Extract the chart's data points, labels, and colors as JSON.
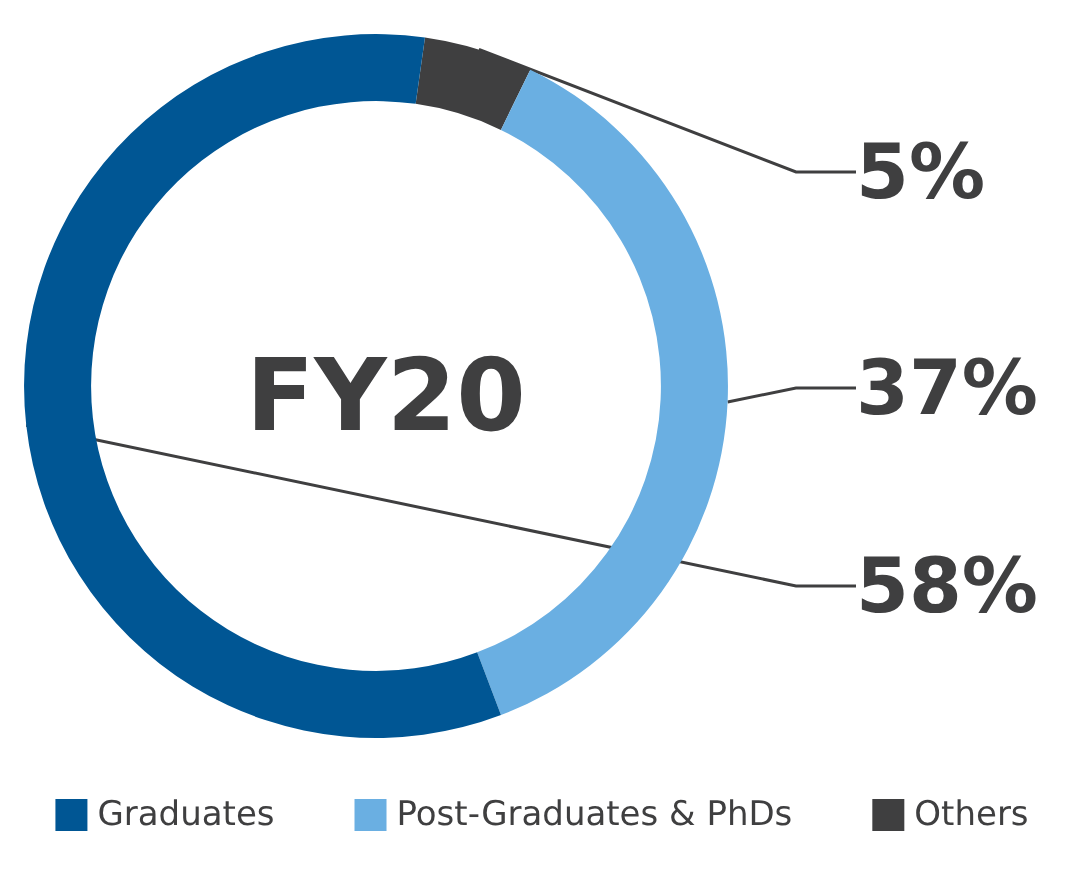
{
  "chart_data": {
    "type": "donut",
    "title": "FY20",
    "categories": [
      "Others",
      "Post-Graduates & PhDs",
      "Graduates"
    ],
    "values": [
      5,
      37,
      58
    ],
    "colors": [
      "#3f3f40",
      "#6aafe2",
      "#005694"
    ],
    "value_labels": [
      "5%",
      "37%",
      "58%"
    ],
    "legend": "bottom"
  }
}
